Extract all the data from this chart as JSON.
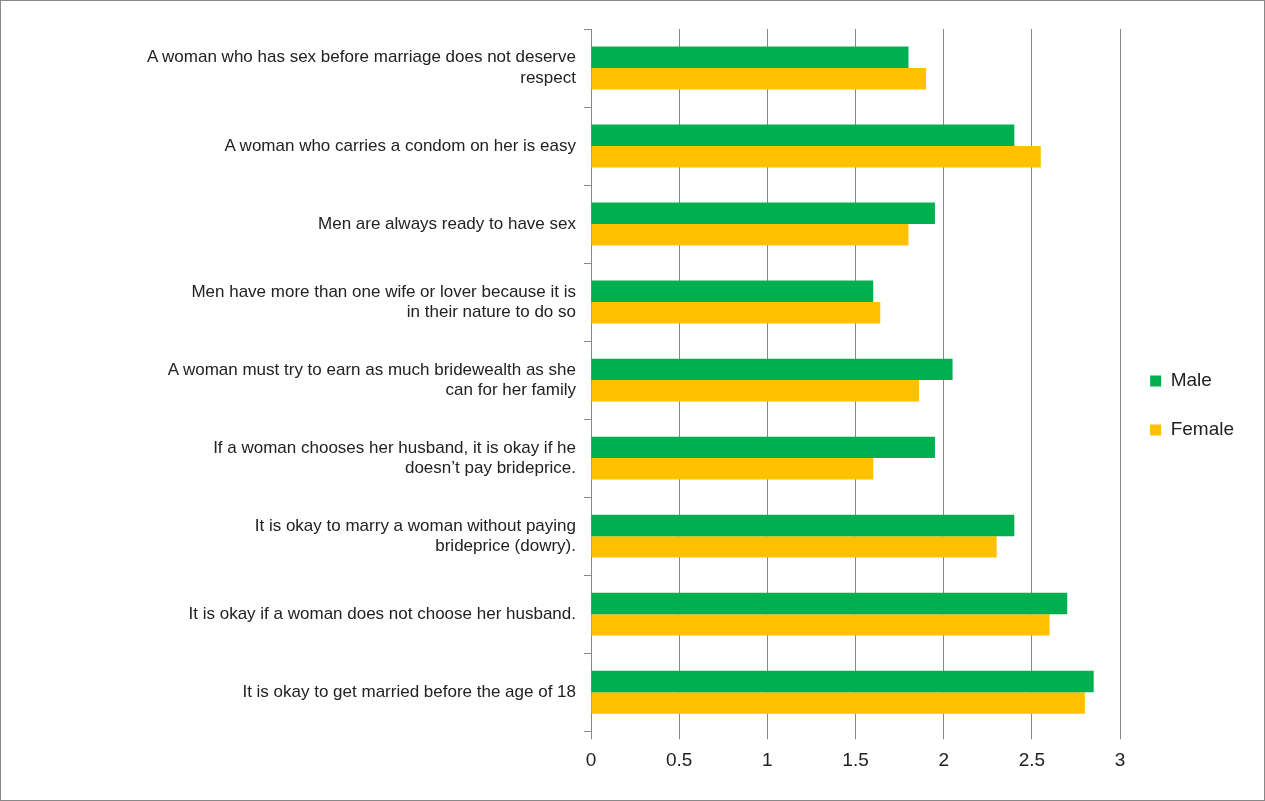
{
  "chart_data": {
    "type": "bar",
    "orientation": "horizontal",
    "categories": [
      "A woman who has sex before marriage does not deserve respect",
      "A woman who carries a condom on her is easy",
      "Men are always ready to have sex",
      "Men have more than one wife or lover because it is in their nature to do so",
      "A woman must try to earn as much bridewealth as she can for her family",
      "If a woman chooses her husband, it is okay if he doesn’t pay brideprice.",
      "It is okay to marry a woman without paying brideprice (dowry).",
      "It is okay if a woman does not choose her husband.",
      "It is okay to get married before the age of 18"
    ],
    "series": [
      {
        "name": "Male",
        "color": "#00b050",
        "values": [
          1.8,
          2.4,
          1.95,
          1.6,
          2.05,
          1.95,
          2.4,
          2.7,
          2.85
        ]
      },
      {
        "name": "Female",
        "color": "#ffc000",
        "values": [
          1.9,
          2.55,
          1.8,
          1.64,
          1.86,
          1.6,
          2.3,
          2.6,
          2.8
        ]
      }
    ],
    "xlim": [
      0,
      3
    ],
    "xticks": [
      0,
      0.5,
      1,
      1.5,
      2,
      2.5,
      3
    ],
    "grid": "x",
    "legend": "right"
  }
}
